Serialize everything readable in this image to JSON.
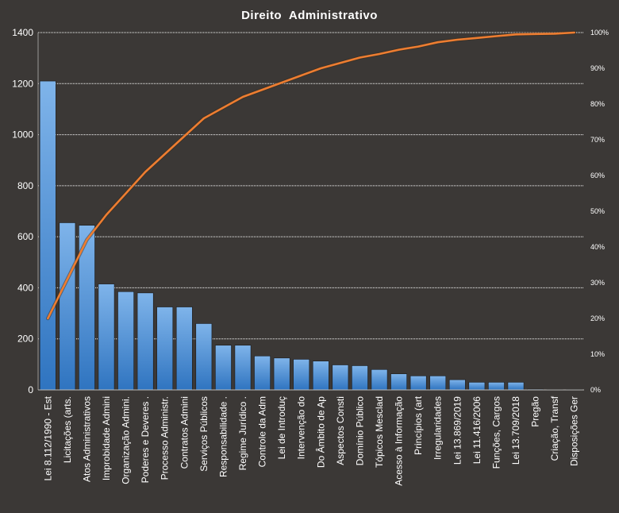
{
  "chart_data": {
    "type": "bar",
    "title": "Direito  Administrativo",
    "xlabel": "",
    "ylabel": "",
    "categories": [
      "Lei 8.112/1990 - Est",
      "Licitações (arts.",
      "Atos Administrativos",
      "Improbidade Admini",
      "Organização Admini.",
      "Poderes e Deveres .",
      "Processo Administr.",
      "Contratos Admini",
      "Serviços Públicos",
      "Responsabilidade .",
      "Regime Jurídico .",
      "Controle da Adm",
      "Lei de Introduç",
      "Intervenção do",
      "Do Âmbito de Ap",
      "Aspectos Consti",
      "Domínio Público",
      "Tópicos Mesclad",
      "Acesso à Informação",
      "Princípios (art",
      "Irregularidades",
      "Lei 13.869/2019",
      "Lei 11.416/2006",
      "Funções, Cargos",
      "Lei 13.709/2018",
      "Pregão",
      "Criação, Transf",
      "Disposições Ger"
    ],
    "series": [
      {
        "type": "bar",
        "axis": "left",
        "color": "#4a90d9",
        "values": [
          1210,
          655,
          645,
          415,
          385,
          380,
          325,
          325,
          260,
          175,
          175,
          133,
          125,
          120,
          113,
          98,
          95,
          80,
          63,
          55,
          55,
          40,
          30,
          30,
          30,
          3,
          2,
          2
        ]
      },
      {
        "type": "line",
        "axis": "right",
        "color": "#ed7d31",
        "values": [
          20,
          31,
          42,
          49,
          55,
          61,
          66,
          71,
          76,
          79,
          82,
          84,
          86,
          88,
          90,
          91.5,
          93,
          94,
          95.2,
          96.1,
          97.3,
          98,
          98.5,
          99,
          99.5,
          99.6,
          99.7,
          100
        ]
      }
    ],
    "ylim": [
      0,
      1400
    ],
    "yticks": [
      0,
      200,
      400,
      600,
      800,
      1000,
      1200,
      1400
    ],
    "y2lim": [
      0,
      100
    ],
    "y2ticks": [
      "0%",
      "10%",
      "20%",
      "30%",
      "40%",
      "50%",
      "60%",
      "70%",
      "80%",
      "90%",
      "100%"
    ],
    "grid": true,
    "legend": "none",
    "colors": {
      "background": "#3b3836",
      "bar": "#4a90d9",
      "line": "#ed7d31",
      "grid": "#ffffff",
      "text": "#ffffff"
    }
  }
}
